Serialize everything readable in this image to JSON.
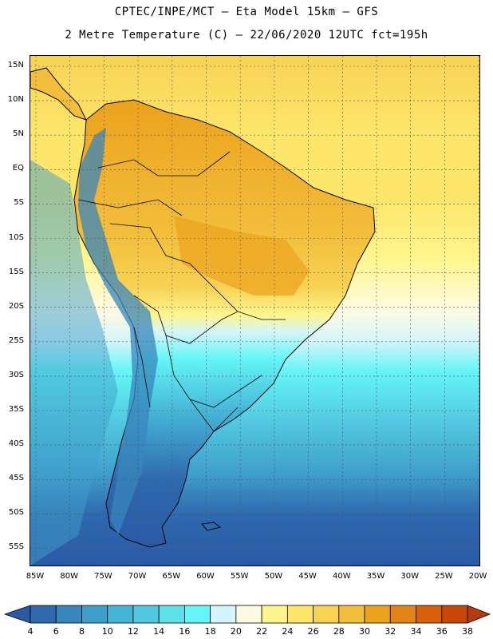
{
  "header": {
    "line1": "CPTEC/INPE/MCT –  Eta Model 15km – GFS",
    "line2": "2 Metre Temperature (C) – 22/06/2020 12UTC fct=195h"
  },
  "axes": {
    "lat_labels": [
      "15N",
      "10N",
      "5N",
      "EQ",
      "5S",
      "10S",
      "15S",
      "20S",
      "25S",
      "30S",
      "35S",
      "40S",
      "45S",
      "50S",
      "55S"
    ],
    "lon_labels": [
      "85W",
      "80W",
      "75W",
      "70W",
      "65W",
      "60W",
      "55W",
      "50W",
      "45W",
      "40W",
      "35W",
      "30W",
      "25W",
      "20W"
    ]
  },
  "colorbar": {
    "labels": [
      "4",
      "6",
      "8",
      "10",
      "12",
      "14",
      "16",
      "18",
      "20",
      "22",
      "24",
      "26",
      "28",
      "30",
      "32",
      "34",
      "36",
      "38"
    ],
    "colors": [
      "#2a5aa6",
      "#2e69ae",
      "#3886bd",
      "#3f9fcb",
      "#46b4d6",
      "#52c8e0",
      "#5de0ea",
      "#63f5f7",
      "#d3f5fb",
      "#fffbe3",
      "#fff58f",
      "#fde66a",
      "#f8d254",
      "#f2be3c",
      "#eca21c",
      "#e38418",
      "#d9600b",
      "#c84608",
      "#b53a0f"
    ]
  }
}
